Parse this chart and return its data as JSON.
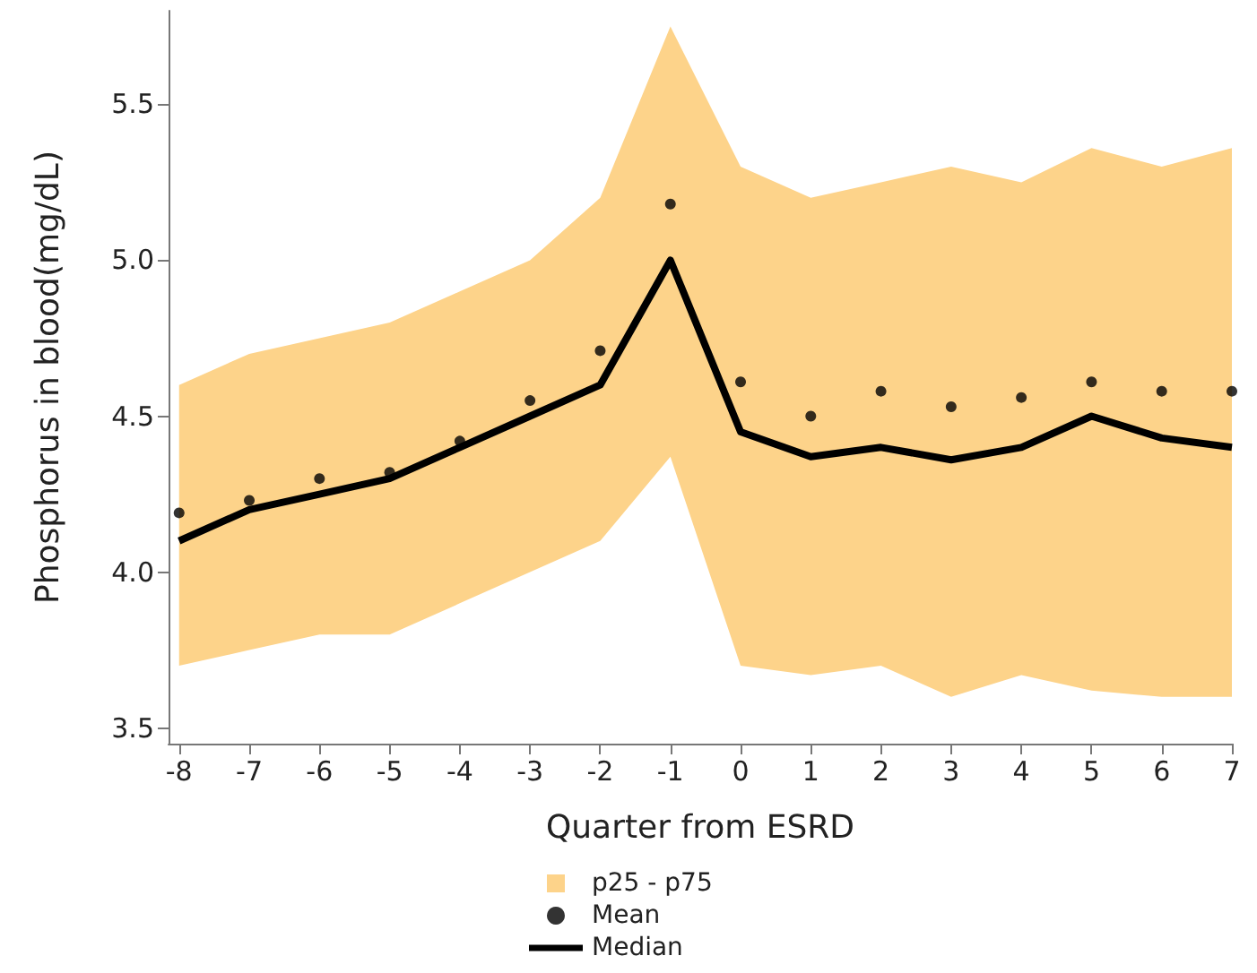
{
  "chart_data": {
    "type": "line",
    "xlabel": "Quarter from ESRD",
    "ylabel": "Phosphorus in blood(mg/dL)",
    "x": [
      -8,
      -7,
      -6,
      -5,
      -4,
      -3,
      -2,
      -1,
      0,
      1,
      2,
      3,
      4,
      5,
      6,
      7
    ],
    "xlim": [
      -8.15,
      7
    ],
    "xticks": [
      -8,
      -7,
      -6,
      -5,
      -4,
      -3,
      -2,
      -1,
      0,
      1,
      2,
      3,
      4,
      5,
      6,
      7
    ],
    "ylim": [
      3.45,
      5.8
    ],
    "yticks": [
      {
        "value": 3.5,
        "label": "3.5"
      },
      {
        "value": 4,
        "label": "4.0"
      },
      {
        "value": 4.5,
        "label": "4.5"
      },
      {
        "value": 5,
        "label": "5.0"
      },
      {
        "value": 5.5,
        "label": "5.5"
      }
    ],
    "grid": false,
    "legend": "bottom",
    "series": [
      {
        "name": "p25 - p75",
        "type": "area",
        "color": "#fdd38a",
        "values": [
          null,
          null,
          null,
          null,
          null,
          null,
          null,
          null,
          null,
          null,
          null,
          null,
          null,
          null,
          null,
          null
        ],
        "lower": [
          3.7,
          3.75,
          3.8,
          3.8,
          3.9,
          4.0,
          4.1,
          4.37,
          3.7,
          3.67,
          3.7,
          3.6,
          3.67,
          3.62,
          3.6,
          3.6
        ],
        "upper": [
          4.6,
          4.7,
          4.75,
          4.8,
          4.9,
          5.0,
          5.2,
          5.75,
          5.3,
          5.2,
          5.25,
          5.3,
          5.25,
          5.36,
          5.3,
          5.36
        ]
      },
      {
        "name": "Mean",
        "type": "scatter",
        "color": "#000000",
        "marker": "circle",
        "values": [
          4.19,
          4.23,
          4.3,
          4.32,
          4.42,
          4.55,
          4.71,
          5.18,
          4.61,
          4.5,
          4.58,
          4.53,
          4.56,
          4.61,
          4.58,
          4.58
        ]
      },
      {
        "name": "Median",
        "color": "#000000",
        "marker": "none",
        "line_style": "solid",
        "values": [
          4.1,
          4.2,
          4.25,
          4.3,
          4.4,
          4.5,
          4.6,
          5.0,
          4.45,
          4.37,
          4.4,
          4.36,
          4.4,
          4.5,
          4.43,
          4.4
        ]
      }
    ]
  }
}
